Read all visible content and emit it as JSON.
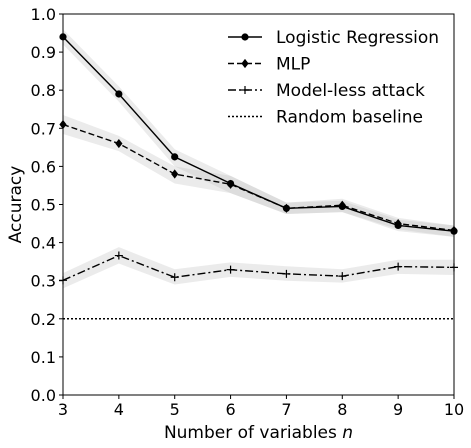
{
  "chart_data": {
    "type": "line",
    "title": "",
    "xlabel": "Number of variables ",
    "xlabel_italic": "n",
    "ylabel": "Accuracy",
    "xlim": [
      3,
      10
    ],
    "ylim": [
      0.0,
      1.0
    ],
    "x": [
      3,
      4,
      5,
      6,
      7,
      8,
      9,
      10
    ],
    "x_ticks": [
      "3",
      "4",
      "5",
      "6",
      "7",
      "8",
      "9",
      "10"
    ],
    "y_ticks": [
      "0.0",
      "0.1",
      "0.2",
      "0.3",
      "0.4",
      "0.5",
      "0.6",
      "0.7",
      "0.8",
      "0.9",
      "1.0"
    ],
    "grid": false,
    "legend_position": "top-right",
    "series": [
      {
        "name": "Logistic Regression",
        "style": "solid",
        "marker": "circle",
        "values": [
          0.94,
          0.79,
          0.625,
          0.555,
          0.49,
          0.495,
          0.445,
          0.43
        ],
        "band_low": [
          0.92,
          0.77,
          0.6,
          0.53,
          0.475,
          0.48,
          0.43,
          0.415
        ],
        "band_high": [
          0.96,
          0.81,
          0.645,
          0.575,
          0.505,
          0.51,
          0.46,
          0.445
        ]
      },
      {
        "name": "MLP",
        "style": "dashed",
        "marker": "diamond",
        "values": [
          0.71,
          0.66,
          0.58,
          0.553,
          0.49,
          0.498,
          0.45,
          0.432
        ],
        "band_low": [
          0.685,
          0.64,
          0.555,
          0.53,
          0.475,
          0.48,
          0.435,
          0.415
        ],
        "band_high": [
          0.735,
          0.68,
          0.6,
          0.575,
          0.505,
          0.515,
          0.465,
          0.445
        ]
      },
      {
        "name": "Model-less attack",
        "style": "dashdot",
        "marker": "plus",
        "values": [
          0.301,
          0.366,
          0.309,
          0.329,
          0.318,
          0.312,
          0.337,
          0.335
        ],
        "band_low": [
          0.28,
          0.345,
          0.29,
          0.31,
          0.3,
          0.295,
          0.318,
          0.315
        ],
        "band_high": [
          0.32,
          0.388,
          0.33,
          0.348,
          0.338,
          0.33,
          0.355,
          0.355
        ]
      },
      {
        "name": "Random baseline",
        "style": "dotted",
        "marker": "none",
        "values": [
          0.2,
          0.2,
          0.2,
          0.2,
          0.2,
          0.2,
          0.2,
          0.2
        ]
      }
    ]
  }
}
